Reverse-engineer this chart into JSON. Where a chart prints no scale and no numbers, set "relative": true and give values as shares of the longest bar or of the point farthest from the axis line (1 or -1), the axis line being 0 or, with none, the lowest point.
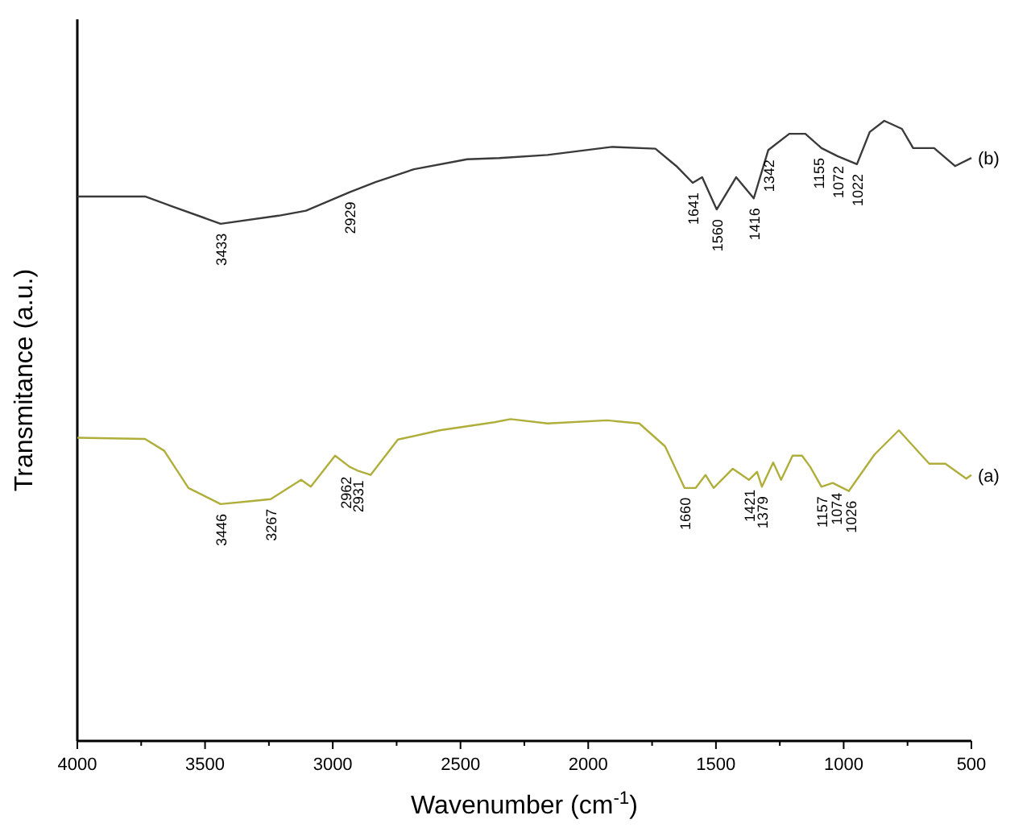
{
  "chart_data": {
    "type": "line",
    "relative": true,
    "xlabel": "Wavenumber (cm$^{-1}$)",
    "ylabel": "Transmitance (a.u.)",
    "xlim": [
      4000,
      500
    ],
    "xticks": [
      4000,
      {
        "value": 3750,
        "label": null
      },
      3500,
      {
        "value": 3250,
        "label": null
      },
      3000,
      {
        "value": 2750,
        "label": null
      },
      2500,
      {
        "value": 2250,
        "label": null
      },
      2000,
      {
        "value": 1750,
        "label": null
      },
      1500,
      {
        "value": 1250,
        "label": null
      },
      1000,
      {
        "value": 750,
        "label": null
      },
      500
    ],
    "grid": false,
    "marker": "none",
    "line_style": "solid",
    "series": [
      {
        "name": "(b)",
        "color": "#3a3a3a",
        "x": [
          4000,
          3735,
          3628,
          3439,
          3212,
          3105,
          2934,
          2833,
          2682,
          2474,
          2348,
          2159,
          1907,
          1737,
          1655,
          1591,
          1554,
          1497,
          1421,
          1352,
          1295,
          1213,
          1150,
          1087,
          1024,
          948,
          898,
          841,
          772,
          728,
          646,
          564,
          500
        ],
        "values": [
          0.878,
          0.878,
          0.862,
          0.834,
          0.847,
          0.855,
          0.885,
          0.901,
          0.922,
          0.938,
          0.94,
          0.945,
          0.958,
          0.955,
          0.927,
          0.9,
          0.909,
          0.857,
          0.909,
          0.875,
          0.953,
          0.979,
          0.979,
          0.956,
          0.943,
          0.93,
          0.982,
          1,
          0.987,
          0.956,
          0.956,
          0.927,
          0.94
        ]
      },
      {
        "name": "(a)",
        "color": "#b0ae3a",
        "x": [
          4000,
          3735,
          3660,
          3565,
          3439,
          3313,
          3243,
          3124,
          3086,
          2991,
          2934,
          2903,
          2852,
          2745,
          2581,
          2367,
          2304,
          2159,
          1926,
          1800,
          1699,
          1623,
          1579,
          1541,
          1509,
          1434,
          1371,
          1339,
          1320,
          1276,
          1245,
          1200,
          1163,
          1131,
          1087,
          1043,
          980,
          879,
          784,
          665,
          602,
          520,
          500
        ],
        "values": [
          0.489,
          0.487,
          0.468,
          0.408,
          0.382,
          0.387,
          0.39,
          0.421,
          0.41,
          0.46,
          0.442,
          0.436,
          0.429,
          0.486,
          0.501,
          0.514,
          0.519,
          0.512,
          0.517,
          0.512,
          0.475,
          0.408,
          0.408,
          0.429,
          0.408,
          0.439,
          0.421,
          0.434,
          0.41,
          0.449,
          0.421,
          0.46,
          0.46,
          0.442,
          0.41,
          0.416,
          0.403,
          0.462,
          0.501,
          0.447,
          0.447,
          0.423,
          0.429
        ]
      }
    ],
    "annotations": [
      {
        "text": "3433",
        "x": 3439,
        "y": 0.834
      },
      {
        "text": "2929",
        "x": 2934,
        "y": 0.885
      },
      {
        "text": "1641",
        "x": 1591,
        "y": 0.9
      },
      {
        "text": "1560",
        "x": 1497,
        "y": 0.857
      },
      {
        "text": "1416",
        "x": 1352,
        "y": 0.875
      },
      {
        "text": "1342",
        "x": 1295,
        "y": 0.953
      },
      {
        "text": "1155",
        "x": 1100,
        "y": 0.956
      },
      {
        "text": "1072",
        "x": 1024,
        "y": 0.943
      },
      {
        "text": "1022",
        "x": 948,
        "y": 0.93
      },
      {
        "text": "3446",
        "x": 3439,
        "y": 0.382
      },
      {
        "text": "3267",
        "x": 3243,
        "y": 0.39
      },
      {
        "text": "2962",
        "x": 2950,
        "y": 0.442
      },
      {
        "text": "2931",
        "x": 2903,
        "y": 0.436
      },
      {
        "text": "1660",
        "x": 1623,
        "y": 0.408
      },
      {
        "text": "1421",
        "x": 1371,
        "y": 0.421
      },
      {
        "text": "1379",
        "x": 1320,
        "y": 0.41
      },
      {
        "text": "1157",
        "x": 1087,
        "y": 0.41
      },
      {
        "text": "1074",
        "x": 1030,
        "y": 0.416
      },
      {
        "text": "1026",
        "x": 972,
        "y": 0.403
      }
    ]
  }
}
